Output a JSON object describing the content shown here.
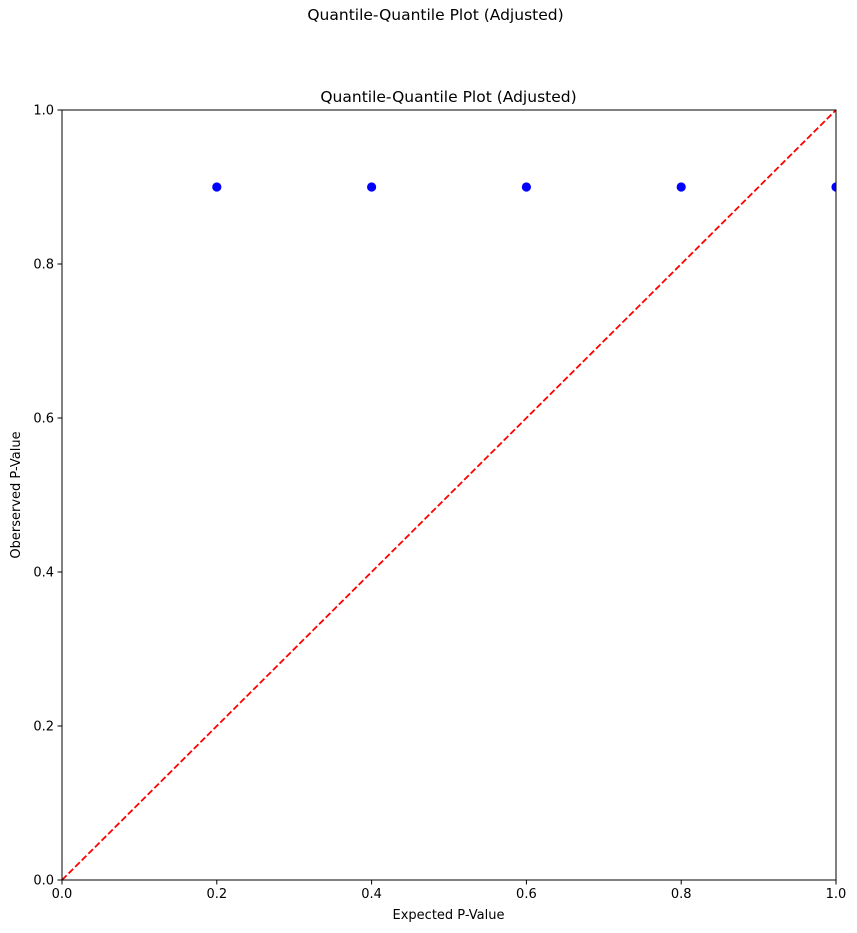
{
  "figure": {
    "suptitle": "Quantile-Quantile Plot (Adjusted)"
  },
  "chart_data": {
    "type": "scatter",
    "title": "Quantile-Quantile Plot (Adjusted)",
    "xlabel": "Expected P-Value",
    "ylabel": "Oberserved P-Value",
    "xlim": [
      0,
      1
    ],
    "ylim": [
      0,
      1
    ],
    "xticks": [
      "0.0",
      "0.2",
      "0.4",
      "0.6",
      "0.8",
      "1.0"
    ],
    "yticks": [
      "0.0",
      "0.2",
      "0.4",
      "0.6",
      "0.8",
      "1.0"
    ],
    "grid": false,
    "series": [
      {
        "type": "scatter",
        "color": "#0000ff",
        "x": [
          0.2,
          0.4,
          0.6,
          0.8,
          1.0
        ],
        "y": [
          0.9,
          0.9,
          0.9,
          0.9,
          0.9
        ]
      },
      {
        "type": "line",
        "style": "dashed",
        "color": "#ff0000",
        "x": [
          0,
          1
        ],
        "y": [
          0,
          1
        ]
      }
    ]
  }
}
